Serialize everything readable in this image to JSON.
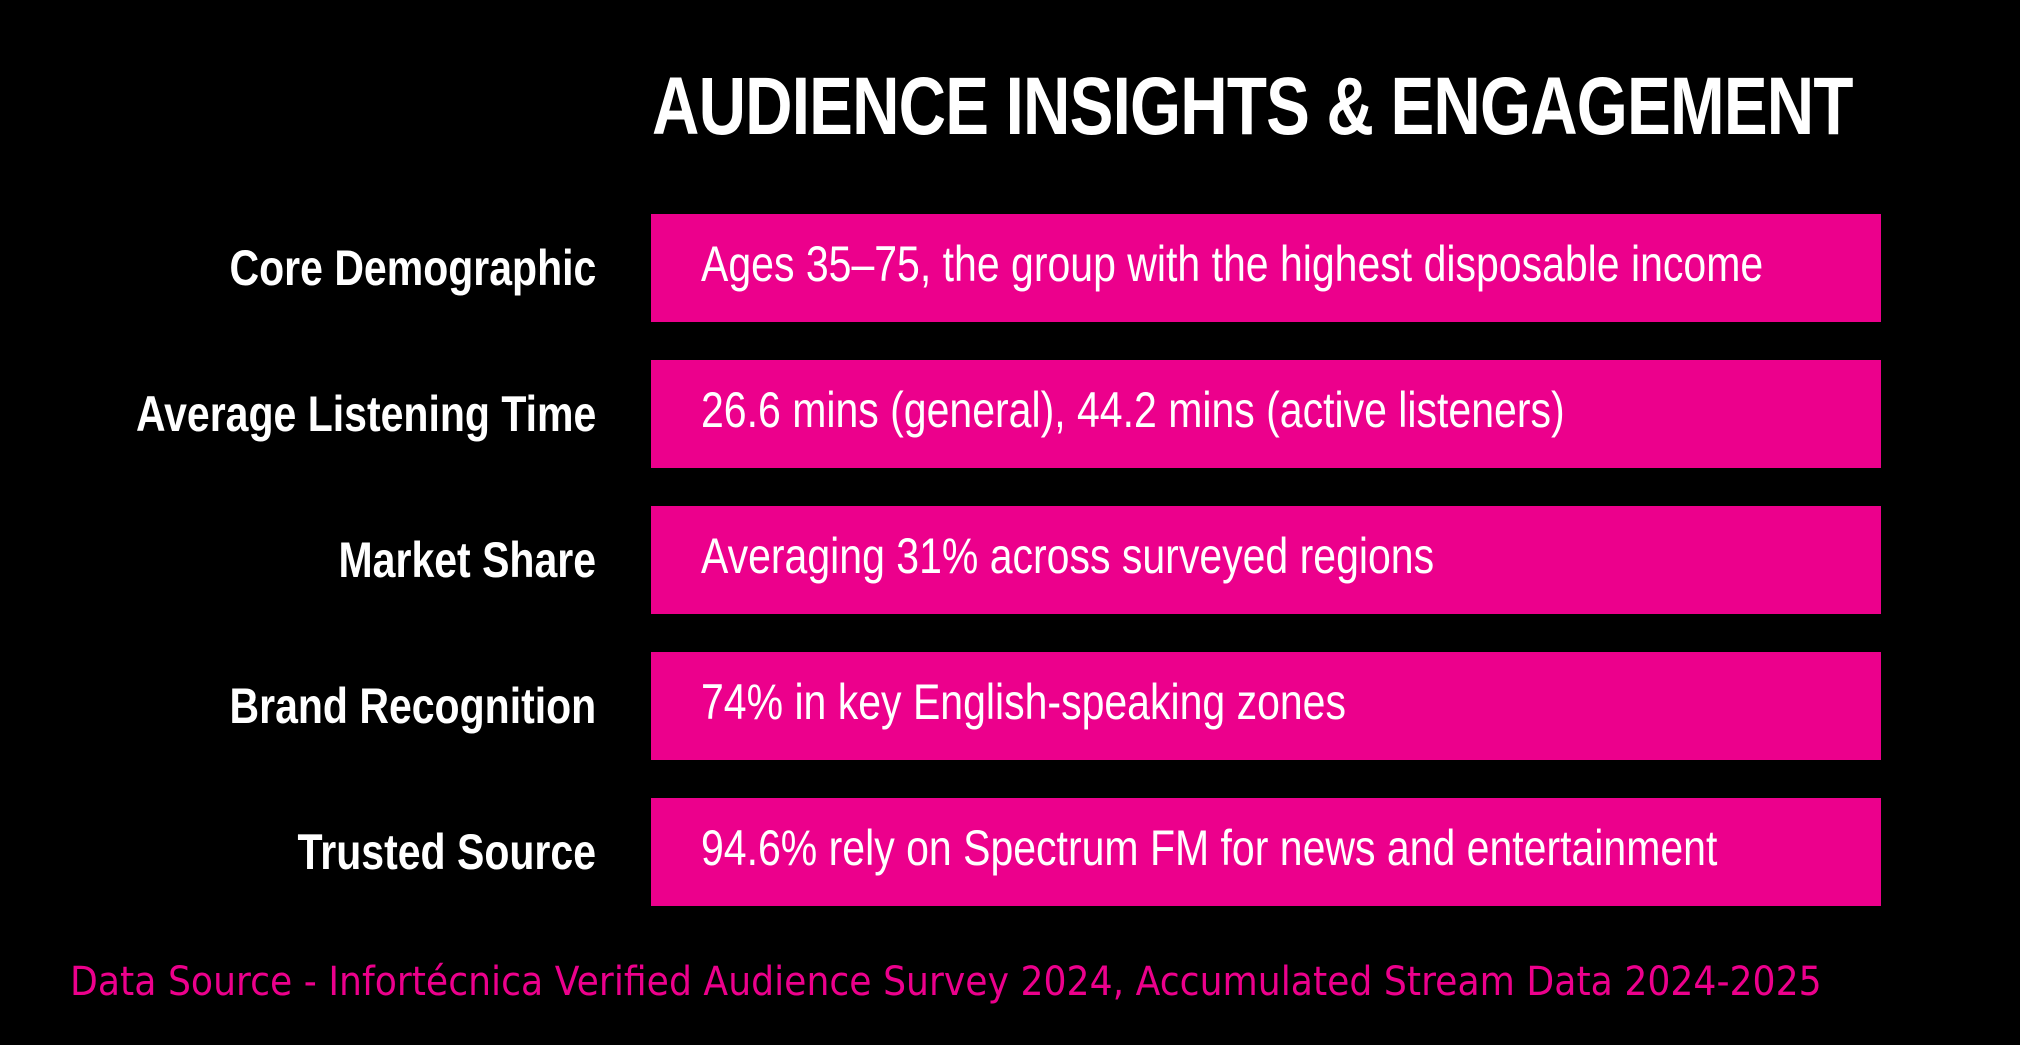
{
  "title": "AUDIENCE INSIGHTS & ENGAGEMENT",
  "colors": {
    "background": "#000000",
    "accent": "#ec008c",
    "text": "#ffffff"
  },
  "rows": [
    {
      "label": "Core Demographic",
      "value": "Ages 35–75, the group with the highest disposable income"
    },
    {
      "label": "Average Listening Time",
      "value": "26.6 mins (general), 44.2 mins (active listeners)"
    },
    {
      "label": "Market Share",
      "value": "Averaging 31% across surveyed regions"
    },
    {
      "label": "Brand Recognition",
      "value": "74% in key English-speaking zones"
    },
    {
      "label": "Trusted Source",
      "value": "94.6% rely on Spectrum FM for news and entertainment"
    }
  ],
  "source": "Data Source - Infortécnica Verified Audience Survey 2024, Accumulated Stream Data 2024-2025"
}
